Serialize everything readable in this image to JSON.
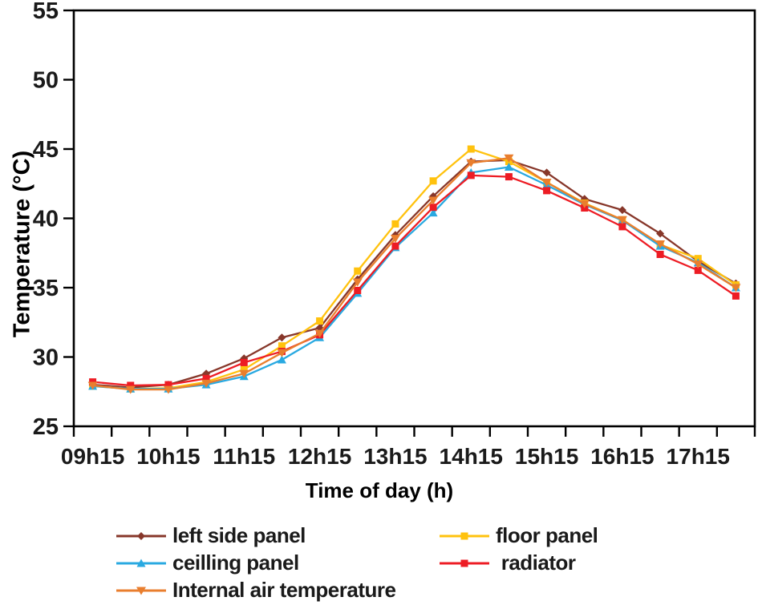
{
  "chart_data": {
    "type": "line",
    "title": "",
    "xlabel": "Time of day (h)",
    "ylabel": "Temperature (°C)",
    "ylim": [
      25,
      55
    ],
    "ytick_step": 5,
    "grid": false,
    "legend_position": "bottom",
    "x": [
      "09h15",
      "09h45",
      "10h15",
      "10h45",
      "11h15",
      "11h45",
      "12h15",
      "12h45",
      "13h15",
      "13h45",
      "14h15",
      "14h45",
      "15h15",
      "15h45",
      "16h15",
      "16h45",
      "17h15",
      "17h45"
    ],
    "x_axis_labels": [
      "09h15",
      "10h15",
      "11h15",
      "12h15",
      "13h15",
      "14h15",
      "15h15",
      "16h15",
      "17h15"
    ],
    "series": [
      {
        "name": "left side panel",
        "color": "#87372A",
        "marker": "diamond",
        "values": [
          28.0,
          27.8,
          28.0,
          28.8,
          29.9,
          31.4,
          32.1,
          35.6,
          38.8,
          41.6,
          44.1,
          44.2,
          43.3,
          41.4,
          40.6,
          38.9,
          36.9,
          35.3
        ]
      },
      {
        "name": "floor panel",
        "color": "#FFC20E",
        "marker": "square",
        "values": [
          27.9,
          27.7,
          27.75,
          28.2,
          29.1,
          30.8,
          32.6,
          36.2,
          39.6,
          42.7,
          45.0,
          44.1,
          42.6,
          41.1,
          39.9,
          38.1,
          37.1,
          35.2
        ]
      },
      {
        "name": "ceilling panel",
        "color": "#29A9E1",
        "marker": "triangle-up",
        "values": [
          27.9,
          27.7,
          27.7,
          28.0,
          28.6,
          29.8,
          31.4,
          34.6,
          37.9,
          40.4,
          43.3,
          43.7,
          42.4,
          41.0,
          39.85,
          38.0,
          36.8,
          35.0
        ]
      },
      {
        "name": " radiator",
        "color": "#ED1C24",
        "marker": "square",
        "values": [
          28.2,
          27.95,
          28.0,
          28.45,
          29.6,
          30.4,
          31.6,
          34.8,
          38.0,
          40.8,
          43.1,
          43.0,
          42.0,
          40.75,
          39.4,
          37.4,
          36.25,
          34.4
        ]
      },
      {
        "name": "Internal air temperature",
        "color": "#E97E2E",
        "marker": "triangle-down",
        "values": [
          27.95,
          27.65,
          27.65,
          28.1,
          28.8,
          30.3,
          31.7,
          35.4,
          38.55,
          41.3,
          44.0,
          44.35,
          42.6,
          41.05,
          39.9,
          38.15,
          36.7,
          35.0
        ]
      }
    ]
  }
}
